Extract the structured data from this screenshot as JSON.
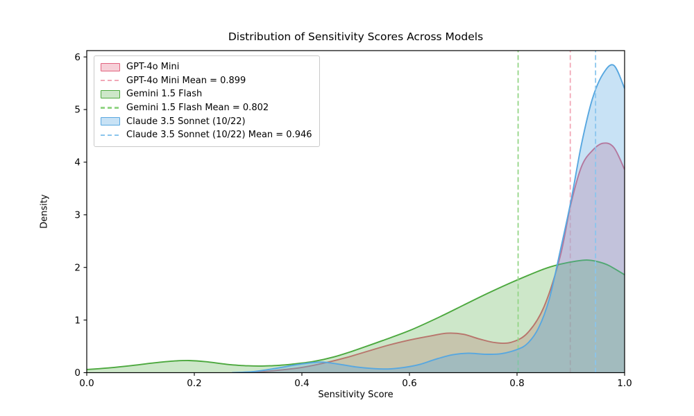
{
  "chart_data": {
    "type": "area",
    "subtype": "kde-density-distribution",
    "title": "Distribution of Sensitivity Scores Across Models",
    "xlabel": "Sensitivity Score",
    "ylabel": "Density",
    "xlim": [
      0.0,
      1.0
    ],
    "ylim": [
      0.0,
      6.12
    ],
    "xticks": [
      0.0,
      0.2,
      0.4,
      0.6,
      0.8,
      1.0
    ],
    "xtick_labels": [
      "0.0",
      "0.2",
      "0.4",
      "0.6",
      "0.8",
      "1.0"
    ],
    "yticks": [
      0,
      1,
      2,
      3,
      4,
      5,
      6
    ],
    "ytick_labels": [
      "0",
      "1",
      "2",
      "3",
      "4",
      "5",
      "6"
    ],
    "grid": false,
    "legend_position": "upper-left",
    "frame_color": "#000000",
    "text_color": "#000000",
    "series": [
      {
        "name": "GPT-4o Mini",
        "mean": 0.899,
        "line_color": "#e2627e",
        "fill_color": "rgba(226,98,126,0.30)",
        "mean_line_color": "#f2a8b7",
        "points": [
          [
            0.3,
            0.0
          ],
          [
            0.33,
            0.02
          ],
          [
            0.36,
            0.05
          ],
          [
            0.4,
            0.1
          ],
          [
            0.44,
            0.18
          ],
          [
            0.48,
            0.28
          ],
          [
            0.52,
            0.4
          ],
          [
            0.56,
            0.52
          ],
          [
            0.6,
            0.62
          ],
          [
            0.64,
            0.7
          ],
          [
            0.67,
            0.75
          ],
          [
            0.7,
            0.73
          ],
          [
            0.73,
            0.64
          ],
          [
            0.76,
            0.57
          ],
          [
            0.79,
            0.58
          ],
          [
            0.82,
            0.76
          ],
          [
            0.85,
            1.25
          ],
          [
            0.88,
            2.2
          ],
          [
            0.9,
            3.2
          ],
          [
            0.92,
            3.92
          ],
          [
            0.94,
            4.22
          ],
          [
            0.96,
            4.36
          ],
          [
            0.98,
            4.28
          ],
          [
            1.0,
            3.86
          ]
        ]
      },
      {
        "name": "Gemini 1.5 Flash",
        "mean": 0.802,
        "line_color": "#4ca83e",
        "fill_color": "rgba(76,168,62,0.28)",
        "mean_line_color": "#94d587",
        "points": [
          [
            0.0,
            0.06
          ],
          [
            0.04,
            0.09
          ],
          [
            0.08,
            0.13
          ],
          [
            0.12,
            0.18
          ],
          [
            0.16,
            0.22
          ],
          [
            0.19,
            0.23
          ],
          [
            0.22,
            0.21
          ],
          [
            0.26,
            0.16
          ],
          [
            0.3,
            0.13
          ],
          [
            0.34,
            0.13
          ],
          [
            0.38,
            0.16
          ],
          [
            0.42,
            0.21
          ],
          [
            0.46,
            0.3
          ],
          [
            0.5,
            0.43
          ],
          [
            0.55,
            0.61
          ],
          [
            0.6,
            0.8
          ],
          [
            0.65,
            1.03
          ],
          [
            0.7,
            1.28
          ],
          [
            0.75,
            1.53
          ],
          [
            0.8,
            1.76
          ],
          [
            0.85,
            1.97
          ],
          [
            0.88,
            2.06
          ],
          [
            0.91,
            2.12
          ],
          [
            0.93,
            2.14
          ],
          [
            0.95,
            2.11
          ],
          [
            0.97,
            2.04
          ],
          [
            1.0,
            1.86
          ]
        ]
      },
      {
        "name": "Claude 3.5 Sonnet (10/22)",
        "mean": 0.946,
        "line_color": "#57a7e0",
        "fill_color": "rgba(87,167,224,0.33)",
        "mean_line_color": "#89c5ed",
        "points": [
          [
            0.27,
            0.0
          ],
          [
            0.31,
            0.02
          ],
          [
            0.35,
            0.08
          ],
          [
            0.39,
            0.15
          ],
          [
            0.42,
            0.19
          ],
          [
            0.44,
            0.2
          ],
          [
            0.47,
            0.16
          ],
          [
            0.5,
            0.11
          ],
          [
            0.53,
            0.08
          ],
          [
            0.56,
            0.07
          ],
          [
            0.59,
            0.1
          ],
          [
            0.62,
            0.16
          ],
          [
            0.65,
            0.26
          ],
          [
            0.68,
            0.34
          ],
          [
            0.71,
            0.37
          ],
          [
            0.74,
            0.35
          ],
          [
            0.77,
            0.36
          ],
          [
            0.8,
            0.44
          ],
          [
            0.82,
            0.56
          ],
          [
            0.84,
            0.85
          ],
          [
            0.86,
            1.4
          ],
          [
            0.88,
            2.3
          ],
          [
            0.9,
            3.25
          ],
          [
            0.92,
            4.35
          ],
          [
            0.94,
            5.2
          ],
          [
            0.96,
            5.68
          ],
          [
            0.98,
            5.84
          ],
          [
            1.0,
            5.4
          ]
        ]
      }
    ],
    "legend": {
      "entries": [
        {
          "label": "GPT-4o Mini",
          "swatch": "patch",
          "series": 0
        },
        {
          "label": "GPT-4o Mini Mean = 0.899",
          "swatch": "dashed-line",
          "series": 0
        },
        {
          "label": "Gemini 1.5 Flash",
          "swatch": "patch",
          "series": 1
        },
        {
          "label": "Gemini 1.5 Flash Mean = 0.802",
          "swatch": "dashed-line",
          "series": 1
        },
        {
          "label": "Claude 3.5 Sonnet (10/22)",
          "swatch": "patch",
          "series": 2
        },
        {
          "label": "Claude 3.5 Sonnet (10/22) Mean = 0.946",
          "swatch": "dashed-line",
          "series": 2
        }
      ]
    }
  }
}
